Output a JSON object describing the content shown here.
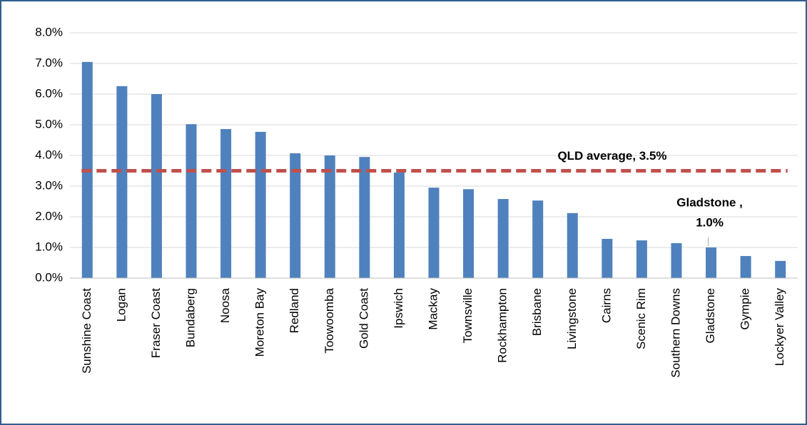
{
  "chart_data": {
    "type": "bar",
    "categories": [
      "Sunshine Coast",
      "Logan",
      "Fraser Coast",
      "Bundaberg",
      "Noosa",
      "Moreton Bay",
      "Redland",
      "Toowoomba",
      "Gold Coast",
      "Ipswich",
      "Mackay",
      "Townsville",
      "Rockhampton",
      "Brisbane",
      "Livingstone",
      "Cairns",
      "Scenic Rim",
      "Southern Downs",
      "Gladstone",
      "Gympie",
      "Lockyer Valley"
    ],
    "values": [
      7.05,
      6.26,
      6.0,
      5.02,
      4.86,
      4.77,
      4.07,
      4.0,
      3.95,
      3.44,
      2.95,
      2.9,
      2.58,
      2.53,
      2.12,
      1.28,
      1.23,
      1.14,
      1.0,
      0.72,
      0.56
    ],
    "color": "#4f81bd",
    "ylim": [
      0,
      8
    ],
    "yticks": [
      {
        "value": 0,
        "label": "0.0%"
      },
      {
        "value": 1,
        "label": "1.0%"
      },
      {
        "value": 2,
        "label": "2.0%"
      },
      {
        "value": 3,
        "label": "3.0%"
      },
      {
        "value": 4,
        "label": "4.0%"
      },
      {
        "value": 5,
        "label": "5.0%"
      },
      {
        "value": 6,
        "label": "6.0%"
      },
      {
        "value": 7,
        "label": "7.0%"
      },
      {
        "value": 8,
        "label": "8.0%"
      }
    ],
    "grid": true,
    "average": {
      "value": 3.5,
      "label": "QLD average, 3.5%",
      "color": "#c0504d"
    },
    "annotation": {
      "category": 18,
      "lines": [
        "Gladstone ,",
        "1.0%"
      ]
    }
  }
}
